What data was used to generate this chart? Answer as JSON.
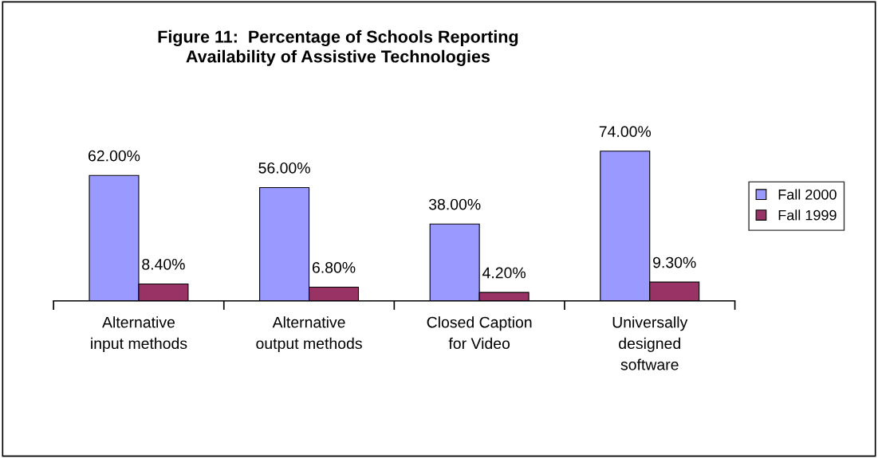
{
  "chart_data": {
    "type": "bar",
    "title": "Figure 11:  Percentage of Schools Reporting\nAvailability of Assistive Technologies",
    "categories": [
      "Alternative\ninput methods",
      "Alternative\noutput methods",
      "Closed Caption\nfor Video",
      "Universally\ndesigned\nsoftware"
    ],
    "series": [
      {
        "name": "Fall 2000",
        "color": "#9999ff",
        "values": [
          62,
          56,
          38,
          74
        ],
        "value_labels": [
          "62.00%",
          "56.00%",
          "38.00%",
          "74.00%"
        ]
      },
      {
        "name": "Fall 1999",
        "color": "#993366",
        "values": [
          8.4,
          6.8,
          4.2,
          9.3
        ],
        "value_labels": [
          "8.40%",
          "6.80%",
          "4.20%",
          "9.30%"
        ]
      }
    ],
    "legend": "right",
    "grid": false,
    "tick_labels": "x"
  }
}
